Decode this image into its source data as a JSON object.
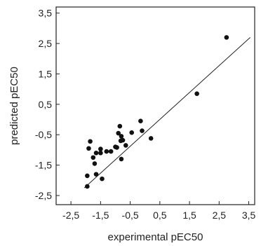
{
  "chart_data": {
    "type": "scatter",
    "xlabel": "experimental pEC50",
    "ylabel": "predicted pEC50",
    "xlim": [
      -3.0,
      3.7
    ],
    "ylim": [
      -2.8,
      3.7
    ],
    "x_ticks": [
      -2.5,
      -1.5,
      -0.5,
      0.5,
      1.5,
      2.5,
      3.5
    ],
    "x_tick_labels": [
      "-2,5",
      "-1,5",
      "-0,5",
      "0,5",
      "1,5",
      "2,5",
      "3,5"
    ],
    "y_ticks": [
      -2.5,
      -1.5,
      -0.5,
      0.5,
      1.5,
      2.5,
      3.5
    ],
    "y_tick_labels": [
      "-2,5",
      "-1,5",
      "-0,5",
      "0,5",
      "1,5",
      "2,5",
      "3,5"
    ],
    "grid": false,
    "points": [
      {
        "x": -1.95,
        "y": -2.2
      },
      {
        "x": -1.95,
        "y": -1.85
      },
      {
        "x": -1.9,
        "y": -0.95
      },
      {
        "x": -1.85,
        "y": -0.72
      },
      {
        "x": -1.75,
        "y": -1.25
      },
      {
        "x": -1.7,
        "y": -1.45
      },
      {
        "x": -1.65,
        "y": -1.1
      },
      {
        "x": -1.65,
        "y": -1.8
      },
      {
        "x": -1.5,
        "y": -0.97
      },
      {
        "x": -1.5,
        "y": -1.1
      },
      {
        "x": -1.45,
        "y": -1.95
      },
      {
        "x": -1.3,
        "y": -1.05
      },
      {
        "x": -1.15,
        "y": -1.05
      },
      {
        "x": -1.0,
        "y": -0.9
      },
      {
        "x": -0.95,
        "y": -0.92
      },
      {
        "x": -0.9,
        "y": -0.45
      },
      {
        "x": -0.85,
        "y": -0.22
      },
      {
        "x": -0.82,
        "y": -0.7
      },
      {
        "x": -0.8,
        "y": -0.55
      },
      {
        "x": -0.8,
        "y": -1.3
      },
      {
        "x": -0.75,
        "y": -0.68
      },
      {
        "x": -0.65,
        "y": -0.85
      },
      {
        "x": -0.45,
        "y": -0.43
      },
      {
        "x": -0.15,
        "y": -0.05
      },
      {
        "x": -0.1,
        "y": -0.37
      },
      {
        "x": 0.2,
        "y": -0.62
      },
      {
        "x": 1.75,
        "y": 0.85
      },
      {
        "x": 2.75,
        "y": 2.7
      }
    ],
    "regression_line": {
      "x": [
        -2.05,
        3.55
      ],
      "y": [
        -2.25,
        2.7
      ]
    }
  }
}
